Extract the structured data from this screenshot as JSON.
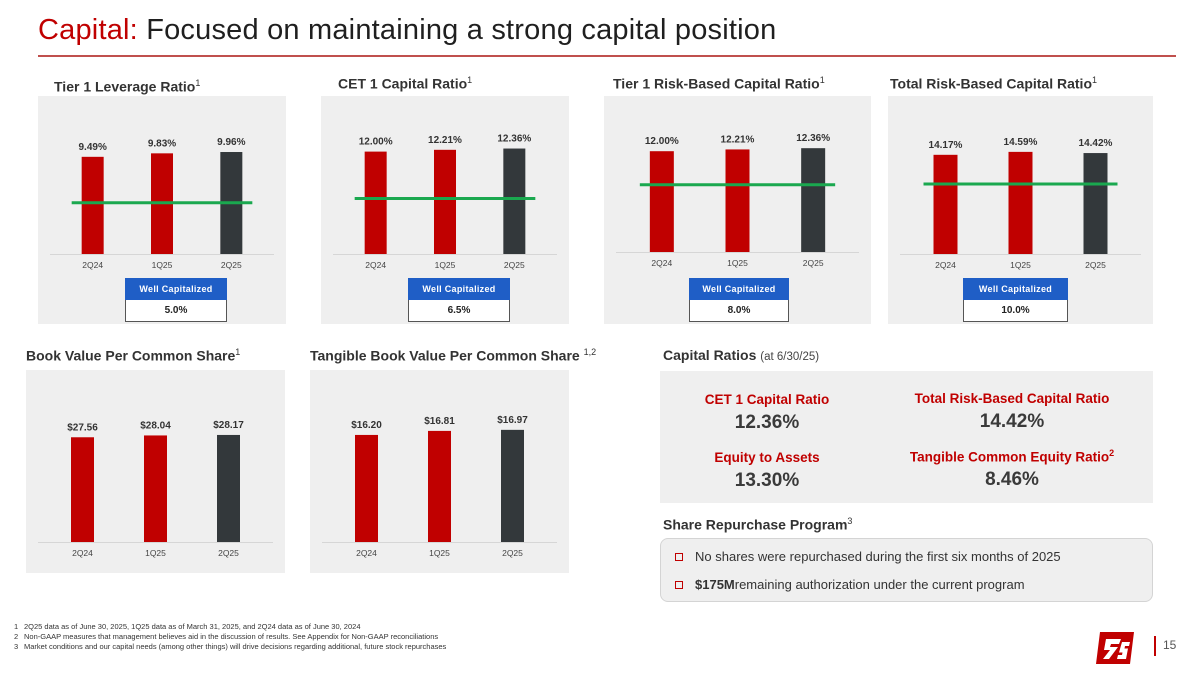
{
  "title": {
    "accent": "Capital:",
    "rest": " Focused on maintaining a strong capital position"
  },
  "sections": {
    "leverage": "Tier 1 Leverage Ratio",
    "cet1": "CET 1 Capital Ratio",
    "t1rb": "Tier 1 Risk-Based Capital Ratio",
    "trb": "Total Risk-Based Capital Ratio",
    "bvps": "Book Value Per Common Share",
    "tbvps": "Tangible Book Value Per Common Share",
    "capital_ratios": "Capital Ratios",
    "capital_ratios_note": "(at 6/30/25)",
    "share_repurchase": "Share Repurchase Program",
    "fn1": "1",
    "fn12": "1,2",
    "fn3": "3"
  },
  "well_capitalized_label": "Well Capitalized",
  "chart_data": [
    {
      "id": "leverage",
      "type": "bar",
      "title": "Tier 1 Leverage Ratio",
      "categories": [
        "2Q24",
        "1Q25",
        "2Q25"
      ],
      "values": [
        9.49,
        9.83,
        9.96
      ],
      "labels": [
        "9.49%",
        "9.83%",
        "9.96%"
      ],
      "threshold": 5.0,
      "threshold_label": "5.0%",
      "ylim": [
        0,
        12.5
      ]
    },
    {
      "id": "cet1",
      "type": "bar",
      "title": "CET 1 Capital Ratio",
      "categories": [
        "2Q24",
        "1Q25",
        "2Q25"
      ],
      "values": [
        12.0,
        12.21,
        12.36
      ],
      "labels": [
        "12.00%",
        "12.21%",
        "12.36%"
      ],
      "threshold": 6.5,
      "threshold_label": "6.5%",
      "ylim": [
        0,
        15
      ]
    },
    {
      "id": "t1rb",
      "type": "bar",
      "title": "Tier 1 Risk-Based Capital Ratio",
      "categories": [
        "2Q24",
        "1Q25",
        "2Q25"
      ],
      "values": [
        12.0,
        12.21,
        12.36
      ],
      "labels": [
        "12.00%",
        "12.21%",
        "12.36%"
      ],
      "threshold": 8.0,
      "threshold_label": "8.0%",
      "ylim": [
        0,
        15
      ]
    },
    {
      "id": "trb",
      "type": "bar",
      "title": "Total Risk-Based Capital Ratio",
      "categories": [
        "2Q24",
        "1Q25",
        "2Q25"
      ],
      "values": [
        14.17,
        14.59,
        14.42
      ],
      "labels": [
        "14.17%",
        "14.59%",
        "14.42%"
      ],
      "threshold": 10.0,
      "threshold_label": "10.0%",
      "ylim": [
        0,
        18
      ]
    },
    {
      "id": "bvps",
      "type": "bar",
      "title": "Book Value Per Common Share",
      "categories": [
        "2Q24",
        "1Q25",
        "2Q25"
      ],
      "values": [
        27.56,
        28.04,
        28.17
      ],
      "labels": [
        "$27.56",
        "$28.04",
        "$28.17"
      ],
      "ylim": [
        0,
        40
      ]
    },
    {
      "id": "tbvps",
      "type": "bar",
      "title": "Tangible Book Value Per Common Share",
      "categories": [
        "2Q24",
        "1Q25",
        "2Q25"
      ],
      "values": [
        16.2,
        16.81,
        16.97
      ],
      "labels": [
        "$16.20",
        "$16.81",
        "$16.97"
      ],
      "ylim": [
        0,
        23
      ]
    }
  ],
  "capital_ratios": {
    "cet1_label": "CET 1 Capital Ratio",
    "cet1_value": "12.36%",
    "trb_label": "Total Risk-Based Capital Ratio",
    "trb_value": "14.42%",
    "eta_label": "Equity to Assets",
    "eta_value": "13.30%",
    "tce_label": "Tangible Common Equity Ratio",
    "tce_sup": "2",
    "tce_value": "8.46%"
  },
  "repurchase": {
    "bullet1": "No shares were repurchased during the first six months of 2025",
    "bullet2_bold": "$175M",
    "bullet2_rest": " remaining authorization under the current program"
  },
  "footnotes": [
    {
      "num": "1",
      "text": "2Q25 data as of June 30, 2025, 1Q25 data as of March 31, 2025, and 2Q24 data as of June 30, 2024"
    },
    {
      "num": "2",
      "text": "Non-GAAP measures that management believes aid in the discussion of results. See Appendix for Non-GAAP reconciliations"
    },
    {
      "num": "3",
      "text": "Market conditions and our capital needs (among other things) will drive decisions regarding additional, future stock repurchases"
    }
  ],
  "page_number": "15",
  "colors": {
    "accent": "#c00000",
    "current_bar": "#33383b",
    "threshold_line": "#1aa84f",
    "badge": "#1f5ec6"
  }
}
